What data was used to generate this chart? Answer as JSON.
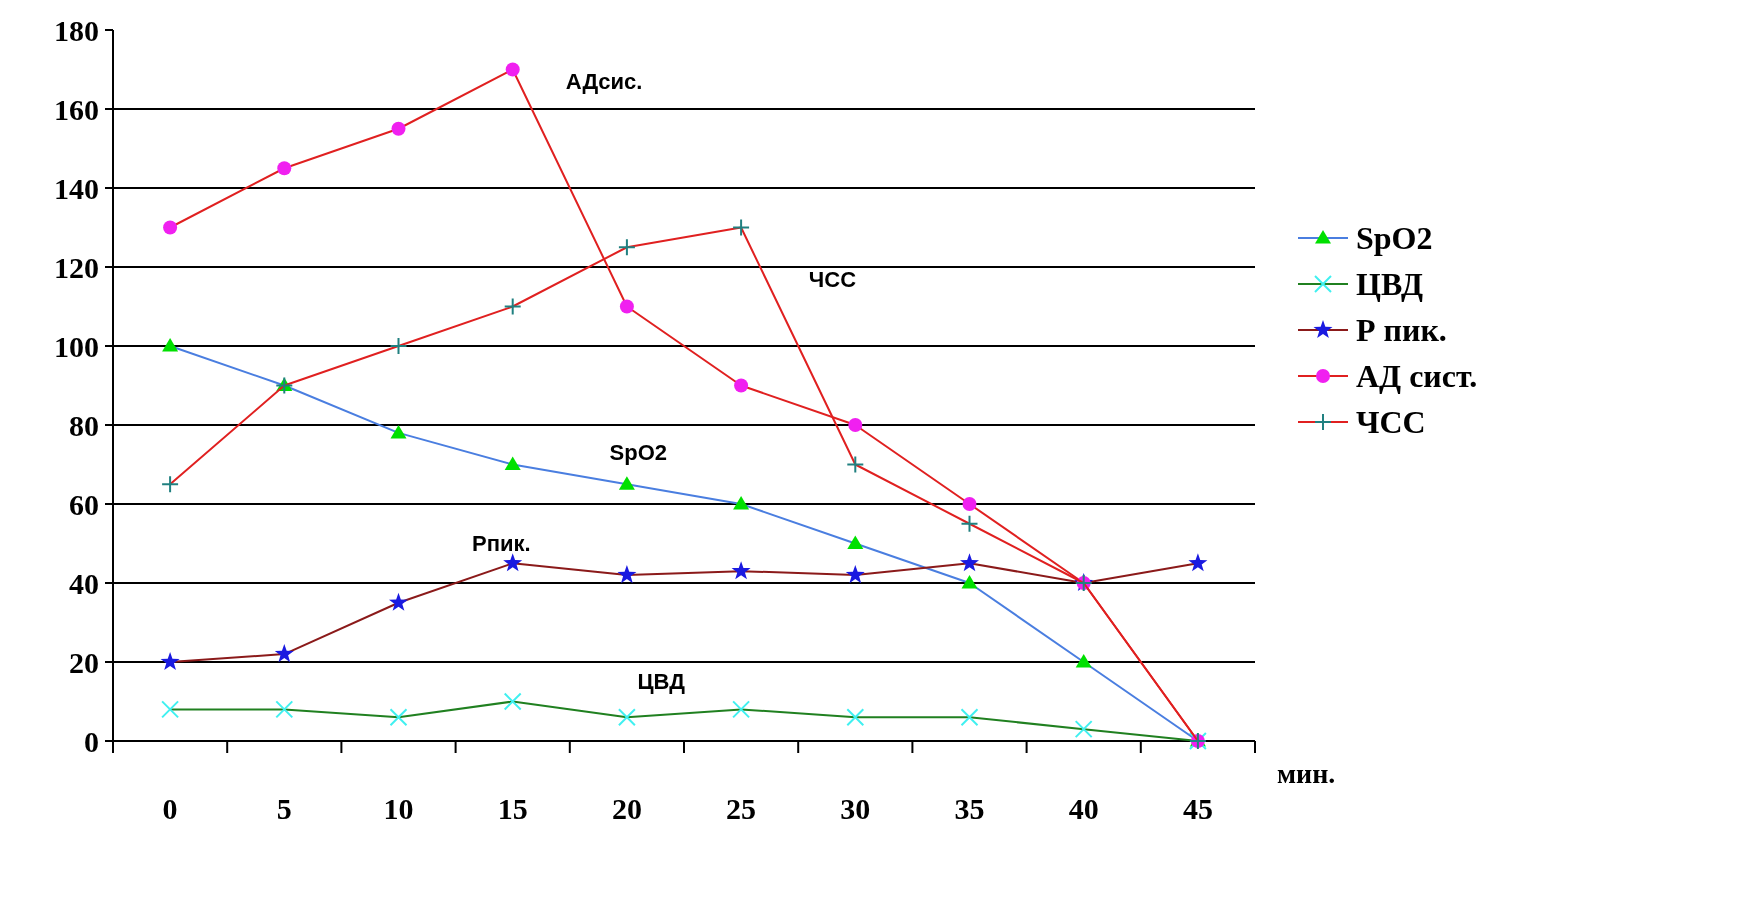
{
  "chart_data": {
    "type": "line",
    "xlabel": "мин.",
    "categories": [
      "0",
      "5",
      "10",
      "15",
      "20",
      "25",
      "30",
      "35",
      "40",
      "45"
    ],
    "ylim": [
      0,
      180
    ],
    "yticks": [
      0,
      20,
      40,
      60,
      80,
      100,
      120,
      140,
      160,
      180
    ],
    "grid": "y",
    "legend": "right",
    "series": [
      {
        "name": "SpO2",
        "color": "#4a7ee0",
        "marker": "triangle",
        "colors": [
          "#00e000",
          "#00e000",
          "#00e000",
          "#00e000",
          "#00e000",
          "#00e000",
          "#00e000",
          "#00e000",
          "#00e000",
          "#00e000"
        ],
        "values": [
          100,
          90,
          78,
          70,
          65,
          60,
          50,
          40,
          20,
          0
        ]
      },
      {
        "name": "ЦВД",
        "color": "#208020",
        "marker": "cross",
        "colors": [
          "#40f0f0",
          "#40f0f0",
          "#40f0f0",
          "#40f0f0",
          "#40f0f0",
          "#40f0f0",
          "#40f0f0",
          "#40f0f0",
          "#40f0f0",
          "#40f0f0"
        ],
        "values": [
          8,
          8,
          6,
          10,
          6,
          8,
          6,
          6,
          3,
          0
        ]
      },
      {
        "name": "Р пик.",
        "color": "#8b1a1a",
        "marker": "star",
        "colors": [
          "#1a1ae0",
          "#1a1ae0",
          "#1a1ae0",
          "#1a1ae0",
          "#1a1ae0",
          "#1a1ae0",
          "#1a1ae0",
          "#1a1ae0",
          "#1a1ae0",
          "#1a1ae0"
        ],
        "values": [
          20,
          22,
          35,
          45,
          42,
          43,
          42,
          45,
          40,
          45
        ]
      },
      {
        "name": "АД сист.",
        "color": "#e02020",
        "marker": "circle",
        "colors": [
          "#f020f0",
          "#f020f0",
          "#f020f0",
          "#f020f0",
          "#f020f0",
          "#f020f0",
          "#f020f0",
          "#f020f0",
          "#f020f0",
          "#f020f0"
        ],
        "values": [
          130,
          145,
          155,
          170,
          110,
          90,
          80,
          60,
          40,
          0
        ]
      },
      {
        "name": "ЧСС",
        "color": "#e02020",
        "marker": "plus",
        "colors": [
          "#208080",
          "#208080",
          "#208080",
          "#208080",
          "#208080",
          "#208080",
          "#208080",
          "#208080",
          "#208080",
          "#208080"
        ],
        "values": [
          65,
          90,
          100,
          110,
          125,
          130,
          70,
          55,
          40,
          0
        ]
      }
    ],
    "annotations": [
      "АДсис.",
      "ЧСС",
      "SpO2",
      "Рпик.",
      "ЦВД"
    ]
  }
}
